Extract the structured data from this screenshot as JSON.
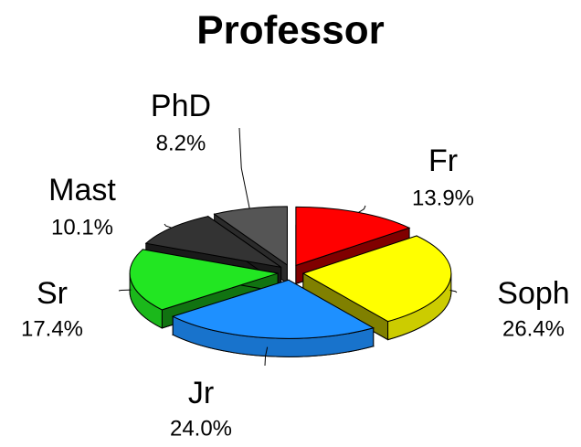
{
  "chart_data": {
    "type": "pie3d",
    "title": "Professor",
    "categories": [
      "Fr",
      "Soph",
      "Jr",
      "Sr",
      "Mast",
      "PhD"
    ],
    "values": [
      13.9,
      26.4,
      24.0,
      17.4,
      10.1,
      8.2
    ],
    "value_labels": [
      "13.9%",
      "26.4%",
      "24.0%",
      "17.4%",
      "10.1%",
      "8.2%"
    ],
    "colors": [
      "#ff0000",
      "#ffff00",
      "#1e90ff",
      "#22e622",
      "#333333",
      "#555555"
    ]
  }
}
